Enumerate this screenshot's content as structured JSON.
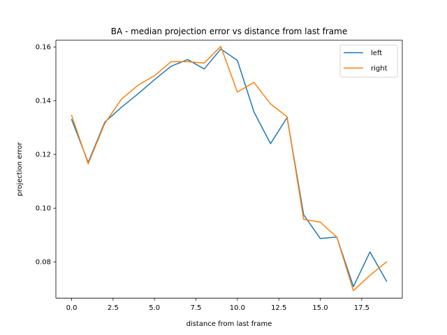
{
  "chart_data": {
    "type": "line",
    "title": "BA - median projection error vs distance from last frame",
    "xlabel": "distance from last frame",
    "ylabel": "projection error",
    "xlim": [
      -0.95,
      19.95
    ],
    "ylim": [
      0.0665,
      0.1625
    ],
    "xticks": [
      0.0,
      2.5,
      5.0,
      7.5,
      10.0,
      12.5,
      15.0,
      17.5
    ],
    "xtick_labels": [
      "0.0",
      "2.5",
      "5.0",
      "7.5",
      "10.0",
      "12.5",
      "15.0",
      "17.5"
    ],
    "yticks": [
      0.08,
      0.1,
      0.12,
      0.14,
      0.16
    ],
    "ytick_labels": [
      "0.08",
      "0.10",
      "0.12",
      "0.14",
      "0.16"
    ],
    "grid": false,
    "legend_position": "top-right",
    "x": [
      0,
      1,
      2,
      3,
      4,
      5,
      6,
      7,
      8,
      9,
      10,
      11,
      12,
      13,
      14,
      15,
      16,
      17,
      18,
      19
    ],
    "series": [
      {
        "name": "left",
        "color": "#1f77b4",
        "values": [
          0.133,
          0.117,
          0.132,
          0.1375,
          0.1425,
          0.1478,
          0.1528,
          0.1553,
          0.1518,
          0.1592,
          0.155,
          0.1358,
          0.124,
          0.1337,
          0.0975,
          0.0887,
          0.0892,
          0.0708,
          0.0837,
          0.0728
        ]
      },
      {
        "name": "right",
        "color": "#ff7f0e",
        "values": [
          0.1345,
          0.1165,
          0.1315,
          0.1405,
          0.1457,
          0.1493,
          0.1545,
          0.1545,
          0.154,
          0.1602,
          0.1432,
          0.1468,
          0.1388,
          0.134,
          0.0958,
          0.0948,
          0.0892,
          0.0693,
          0.075,
          0.08
        ]
      }
    ]
  }
}
